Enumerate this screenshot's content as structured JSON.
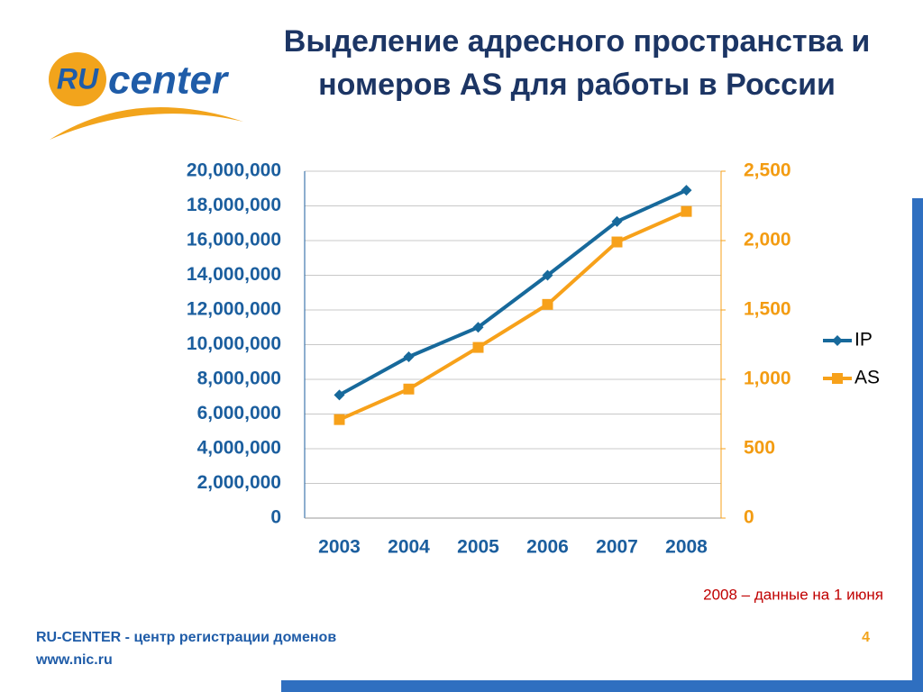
{
  "logo": {
    "mark": "RU",
    "text": "center"
  },
  "chart_data": {
    "type": "line",
    "title": "Выделение адресного пространства и номеров AS для работы в России",
    "categories": [
      "2003",
      "2004",
      "2005",
      "2006",
      "2007",
      "2008"
    ],
    "series": [
      {
        "name": "IP",
        "color": "#17699b",
        "values": [
          7100000,
          9300000,
          11000000,
          14000000,
          17100000,
          18900000
        ]
      },
      {
        "name": "AS",
        "color": "#f7a11a",
        "axis": "y2",
        "values": [
          710,
          930,
          1230,
          1540,
          1990,
          2210
        ]
      }
    ],
    "ylim": [
      0,
      20000000
    ],
    "yticks": [
      0,
      {
        "value": 2000000,
        "label": "2,000,000"
      },
      {
        "value": 4000000,
        "label": "4,000,000"
      },
      {
        "value": 6000000,
        "label": "6,000,000"
      },
      {
        "value": 8000000,
        "label": "8,000,000"
      },
      {
        "value": 10000000,
        "label": "10,000,000"
      },
      {
        "value": 12000000,
        "label": "12,000,000"
      },
      {
        "value": 14000000,
        "label": "14,000,000"
      },
      {
        "value": 16000000,
        "label": "16,000,000"
      },
      {
        "value": 18000000,
        "label": "18,000,000"
      },
      {
        "value": 20000000,
        "label": "20,000,000"
      }
    ],
    "y2lim": [
      0,
      2500
    ],
    "y2ticks": [
      0,
      500,
      {
        "value": 1000,
        "label": "1,000"
      },
      {
        "value": 1500,
        "label": "1,500"
      },
      {
        "value": 2000,
        "label": "2,000"
      },
      {
        "value": 2500,
        "label": "2,500"
      }
    ],
    "grid": true,
    "legend": "right",
    "annotation": "2008 – данные на 1 июня"
  },
  "footer": {
    "org": "RU-CENTER - центр регистрации доменов",
    "url": "www.nic.ru",
    "page": "4"
  }
}
